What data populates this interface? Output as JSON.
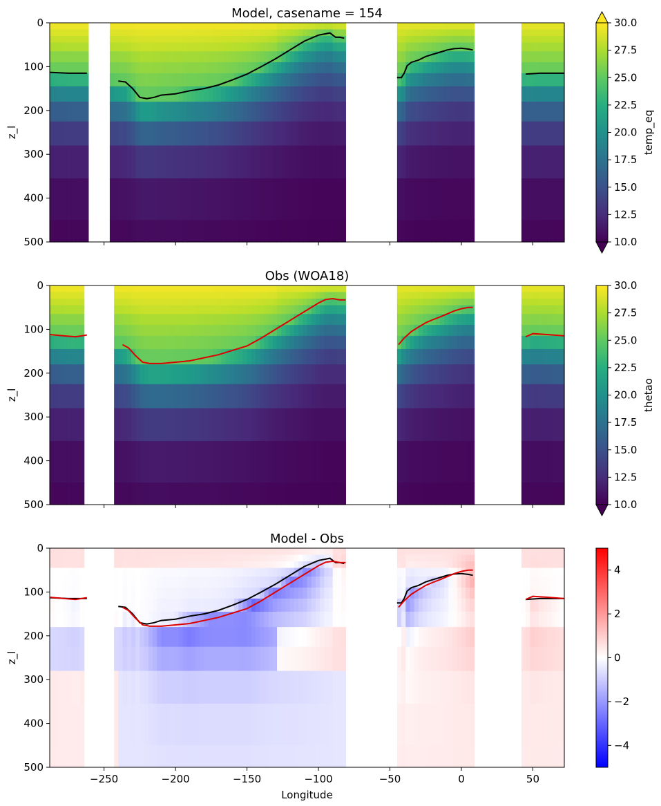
{
  "chart_data": [
    {
      "type": "heatmap",
      "title": "Model, casename = 154",
      "xlabel": "",
      "ylabel": "z_l",
      "xlim": [
        -288,
        72
      ],
      "ylim": [
        500,
        0
      ],
      "yticks": [
        0,
        100,
        200,
        300,
        400,
        500
      ],
      "colorbar": {
        "label": "temp_eq",
        "range": [
          10,
          30
        ],
        "ticks": [
          10.0,
          12.5,
          15.0,
          17.5,
          20.0,
          22.5,
          25.0,
          27.5,
          30.0
        ],
        "colormap": "viridis",
        "extend": "both"
      },
      "series": [
        {
          "name": "model isotherm",
          "color": "#000000",
          "x": [
            -288,
            -275,
            -262,
            null,
            -240,
            -235,
            -230,
            -225,
            -220,
            -215,
            -210,
            -200,
            -190,
            -180,
            -170,
            -160,
            -150,
            -140,
            -130,
            -120,
            -110,
            -100,
            -95,
            -92,
            -88,
            -85,
            -82,
            null,
            -45,
            -42,
            -40,
            -38,
            -35,
            -30,
            -25,
            -20,
            -15,
            -10,
            -5,
            0,
            5,
            8,
            null,
            45,
            55,
            72
          ],
          "y": [
            113,
            115,
            115,
            null,
            133,
            135,
            150,
            170,
            173,
            170,
            165,
            162,
            155,
            150,
            142,
            130,
            117,
            100,
            82,
            62,
            42,
            28,
            25,
            23,
            33,
            33,
            35,
            null,
            125,
            125,
            115,
            98,
            90,
            85,
            77,
            72,
            67,
            62,
            59,
            58,
            60,
            62,
            null,
            117,
            115,
            115
          ]
        }
      ]
    },
    {
      "type": "heatmap",
      "title": "Obs (WOA18)",
      "xlabel": "",
      "ylabel": "z_l",
      "xlim": [
        -288,
        72
      ],
      "ylim": [
        500,
        0
      ],
      "yticks": [
        0,
        100,
        200,
        300,
        400,
        500
      ],
      "colorbar": {
        "label": "thetao",
        "range": [
          10,
          30
        ],
        "ticks": [
          10.0,
          12.5,
          15.0,
          17.5,
          20.0,
          22.5,
          25.0,
          27.5,
          30.0
        ],
        "colormap": "viridis",
        "extend": "min"
      },
      "series": [
        {
          "name": "obs isotherm",
          "color": "#dd0000",
          "x": [
            -288,
            -278,
            -270,
            -262,
            null,
            -237,
            -233,
            -228,
            -223,
            -218,
            -210,
            -200,
            -190,
            -180,
            -170,
            -160,
            -150,
            -140,
            -130,
            -120,
            -110,
            -100,
            -95,
            -90,
            -85,
            -81,
            null,
            -44,
            -40,
            -35,
            -30,
            -25,
            -20,
            -15,
            -10,
            -5,
            0,
            5,
            8,
            null,
            45,
            50,
            60,
            72
          ],
          "y": [
            112,
            115,
            117,
            113,
            null,
            135,
            142,
            160,
            175,
            178,
            178,
            175,
            172,
            165,
            158,
            148,
            138,
            120,
            100,
            80,
            60,
            40,
            32,
            30,
            33,
            33,
            null,
            135,
            120,
            105,
            95,
            85,
            78,
            72,
            65,
            58,
            53,
            50,
            50,
            null,
            117,
            110,
            112,
            115
          ]
        }
      ]
    },
    {
      "type": "heatmap",
      "title": "Model - Obs",
      "xlabel": "Longitude",
      "ylabel": "z_l",
      "xlim": [
        -288,
        72
      ],
      "ylim": [
        500,
        0
      ],
      "xticks": [
        -250,
        -200,
        -150,
        -100,
        -50,
        0,
        50
      ],
      "yticks": [
        0,
        100,
        200,
        300,
        400,
        500
      ],
      "colorbar": {
        "label": "",
        "range": [
          -5,
          5
        ],
        "ticks": [
          -4,
          -2,
          0,
          2,
          4
        ],
        "colormap": "bwr"
      },
      "series": [
        {
          "name": "model isotherm",
          "color": "#000000"
        },
        {
          "name": "obs isotherm",
          "color": "#dd0000"
        }
      ]
    }
  ]
}
